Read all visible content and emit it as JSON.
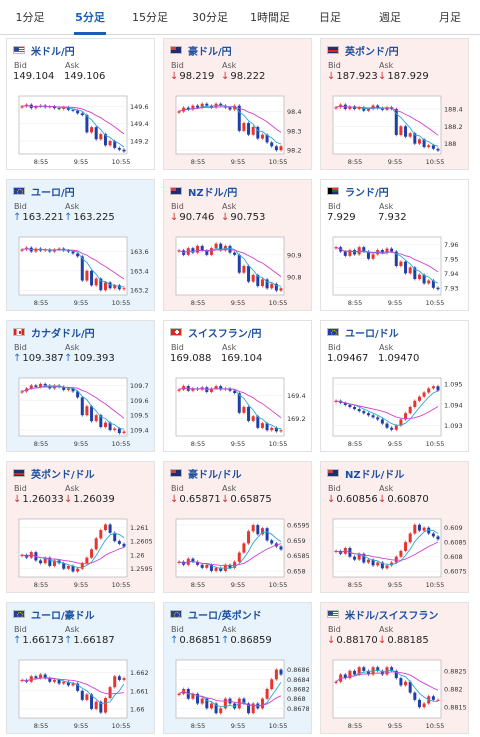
{
  "tabs": [
    {
      "label": "1分足",
      "active": false
    },
    {
      "label": "5分足",
      "active": true
    },
    {
      "label": "15分足",
      "active": false
    },
    {
      "label": "30分足",
      "active": false
    },
    {
      "label": "1時間足",
      "active": false
    },
    {
      "label": "日足",
      "active": false
    },
    {
      "label": "週足",
      "active": false
    },
    {
      "label": "月足",
      "active": false
    }
  ],
  "labels": {
    "bid": "Bid",
    "ask": "Ask"
  },
  "colors": {
    "up_card": "#e9f3fb",
    "down_card": "#fdeeee",
    "flat_card": "#ffffff",
    "candle_up": "#e8342e",
    "candle_down": "#1f3fa8",
    "ma_fast": "#2aa8d8",
    "ma_slow": "#d040d0",
    "title": "#1b4fa0",
    "tab_active": "#1a5fb4"
  },
  "times": [
    "8:55",
    "9:55",
    "10:55"
  ],
  "pairs": [
    {
      "name": "米ドル/円",
      "flag": "us",
      "direction": "flat",
      "bid": "149.104",
      "ask": "149.106",
      "yticks": [
        "149.6",
        "149.4",
        "149.2"
      ],
      "yrange": [
        149.05,
        149.72
      ],
      "close": [
        149.6,
        149.62,
        149.58,
        149.6,
        149.61,
        149.59,
        149.6,
        149.58,
        149.57,
        149.59,
        149.56,
        149.55,
        149.52,
        149.5,
        149.3,
        149.36,
        149.22,
        149.28,
        149.15,
        149.2,
        149.12,
        149.1,
        149.08
      ]
    },
    {
      "name": "豪ドル/円",
      "flag": "au",
      "direction": "down",
      "bid": "98.219",
      "ask": "98.222",
      "yticks": [
        "98.4",
        "98.3",
        "98.2"
      ],
      "yrange": [
        98.18,
        98.48
      ],
      "close": [
        98.4,
        98.42,
        98.41,
        98.43,
        98.42,
        98.44,
        98.43,
        98.42,
        98.44,
        98.43,
        98.42,
        98.41,
        98.43,
        98.3,
        98.34,
        98.28,
        98.32,
        98.26,
        98.28,
        98.24,
        98.22,
        98.2,
        98.22
      ]
    },
    {
      "name": "英ポンド/円",
      "flag": "gb",
      "direction": "down",
      "bid": "187.923",
      "ask": "187.929",
      "yticks": [
        "188.4",
        "188.2",
        "188"
      ],
      "yrange": [
        187.88,
        188.55
      ],
      "close": [
        188.42,
        188.45,
        188.4,
        188.43,
        188.4,
        188.42,
        188.38,
        188.4,
        188.44,
        188.41,
        188.39,
        188.42,
        188.4,
        188.1,
        188.2,
        188.08,
        188.12,
        188.0,
        188.05,
        187.96,
        187.98,
        187.94,
        187.92
      ]
    },
    {
      "name": "ユーロ/円",
      "flag": "eu",
      "direction": "up",
      "bid": "163.221",
      "ask": "163.225",
      "yticks": [
        "163.6",
        "163.4",
        "163.2"
      ],
      "yrange": [
        163.15,
        163.75
      ],
      "close": [
        163.62,
        163.64,
        163.6,
        163.63,
        163.61,
        163.62,
        163.6,
        163.62,
        163.63,
        163.61,
        163.6,
        163.58,
        163.55,
        163.3,
        163.4,
        163.25,
        163.32,
        163.2,
        163.28,
        163.22,
        163.25,
        163.21,
        163.22
      ]
    },
    {
      "name": "NZドル/円",
      "flag": "nz",
      "direction": "down",
      "bid": "90.746",
      "ask": "90.753",
      "yticks": [
        "90.9",
        "90.8"
      ],
      "yrange": [
        90.72,
        90.98
      ],
      "close": [
        90.92,
        90.9,
        90.93,
        90.91,
        90.94,
        90.92,
        90.9,
        90.93,
        90.95,
        90.92,
        90.94,
        90.91,
        90.9,
        90.82,
        90.85,
        90.78,
        90.81,
        90.76,
        90.79,
        90.75,
        90.77,
        90.74,
        90.75
      ]
    },
    {
      "name": "ランド/円",
      "flag": "za",
      "direction": "flat",
      "bid": "7.929",
      "ask": "7.932",
      "yticks": [
        "7.96",
        "7.95",
        "7.94",
        "7.93"
      ],
      "yrange": [
        7.925,
        7.965
      ],
      "close": [
        7.958,
        7.955,
        7.952,
        7.956,
        7.953,
        7.958,
        7.955,
        7.95,
        7.953,
        7.956,
        7.954,
        7.957,
        7.955,
        7.945,
        7.948,
        7.94,
        7.944,
        7.936,
        7.939,
        7.933,
        7.935,
        7.93,
        7.929
      ]
    },
    {
      "name": "カナダドル/円",
      "flag": "ca",
      "direction": "up",
      "bid": "109.387",
      "ask": "109.393",
      "yticks": [
        "109.7",
        "109.6",
        "109.5",
        "109.4"
      ],
      "yrange": [
        109.36,
        109.75
      ],
      "close": [
        109.66,
        109.68,
        109.7,
        109.69,
        109.71,
        109.7,
        109.68,
        109.7,
        109.69,
        109.67,
        109.68,
        109.66,
        109.62,
        109.5,
        109.56,
        109.46,
        109.5,
        109.42,
        109.45,
        109.4,
        109.41,
        109.38,
        109.39
      ]
    },
    {
      "name": "スイスフラン/円",
      "flag": "ch",
      "direction": "flat",
      "bid": "169.088",
      "ask": "169.104",
      "yticks": [
        "169.4",
        "169.2"
      ],
      "yrange": [
        169.05,
        169.55
      ],
      "close": [
        169.45,
        169.48,
        169.44,
        169.46,
        169.45,
        169.47,
        169.43,
        169.46,
        169.48,
        169.45,
        169.46,
        169.44,
        169.42,
        169.25,
        169.3,
        169.18,
        169.22,
        169.12,
        169.16,
        169.1,
        169.12,
        169.09,
        169.1
      ]
    },
    {
      "name": "ユーロ/ドル",
      "flag": "eu",
      "direction": "flat",
      "bid": "1.09467",
      "ask": "1.09470",
      "yticks": [
        "1.095",
        "1.094",
        "1.093"
      ],
      "yrange": [
        1.0925,
        1.0953
      ],
      "close": [
        1.0942,
        1.0941,
        1.094,
        1.0939,
        1.0938,
        1.0937,
        1.0936,
        1.0935,
        1.0934,
        1.0933,
        1.0931,
        1.0929,
        1.0928,
        1.093,
        1.0933,
        1.0936,
        1.0939,
        1.0942,
        1.0944,
        1.0946,
        1.0948,
        1.0949,
        1.0947
      ]
    },
    {
      "name": "英ポンド/ドル",
      "flag": "gb",
      "direction": "down",
      "bid": "1.26033",
      "ask": "1.26039",
      "yticks": [
        "1.261",
        "1.2605",
        "1.26",
        "1.2595"
      ],
      "yrange": [
        1.2592,
        1.2613
      ],
      "close": [
        1.26,
        1.2599,
        1.2601,
        1.2598,
        1.2597,
        1.2599,
        1.2596,
        1.2598,
        1.2597,
        1.2595,
        1.2596,
        1.2594,
        1.2595,
        1.2597,
        1.2599,
        1.2602,
        1.2606,
        1.2609,
        1.2611,
        1.2608,
        1.2605,
        1.2604,
        1.2603
      ]
    },
    {
      "name": "豪ドル/ドル",
      "flag": "au",
      "direction": "down",
      "bid": "0.65871",
      "ask": "0.65875",
      "yticks": [
        "0.6595",
        "0.659",
        "0.6585",
        "0.658"
      ],
      "yrange": [
        0.6578,
        0.6597
      ],
      "close": [
        0.6583,
        0.6582,
        0.6584,
        0.6583,
        0.6582,
        0.6581,
        0.6582,
        0.658,
        0.6581,
        0.658,
        0.6582,
        0.6581,
        0.6583,
        0.6586,
        0.6589,
        0.6593,
        0.6595,
        0.6592,
        0.6594,
        0.659,
        0.6589,
        0.6588,
        0.6587
      ]
    },
    {
      "name": "NZドル/ドル",
      "flag": "nz",
      "direction": "down",
      "bid": "0.60856",
      "ask": "0.60870",
      "yticks": [
        "0.609",
        "0.6085",
        "0.608",
        "0.6075"
      ],
      "yrange": [
        0.6073,
        0.6093
      ],
      "close": [
        0.6082,
        0.6081,
        0.6083,
        0.608,
        0.6079,
        0.6081,
        0.6078,
        0.6079,
        0.6077,
        0.6078,
        0.6076,
        0.6077,
        0.6078,
        0.608,
        0.6082,
        0.6085,
        0.6088,
        0.6091,
        0.6089,
        0.609,
        0.6088,
        0.6087,
        0.6086
      ]
    },
    {
      "name": "ユーロ/豪ドル",
      "flag": "eu",
      "direction": "up",
      "bid": "1.66173",
      "ask": "1.66187",
      "yticks": [
        "1.662",
        "1.661",
        "1.66"
      ],
      "yrange": [
        1.6595,
        1.6627
      ],
      "close": [
        1.6616,
        1.6615,
        1.6618,
        1.6617,
        1.6619,
        1.6617,
        1.6615,
        1.6616,
        1.6614,
        1.6615,
        1.6613,
        1.6614,
        1.661,
        1.6605,
        1.6608,
        1.66,
        1.6604,
        1.6598,
        1.6606,
        1.6612,
        1.6618,
        1.6616,
        1.6617
      ]
    },
    {
      "name": "ユーロ/英ポンド",
      "flag": "eu",
      "direction": "up",
      "bid": "0.86851",
      "ask": "0.86859",
      "yticks": [
        "0.8686",
        "0.8684",
        "0.8682",
        "0.868",
        "0.8678"
      ],
      "yrange": [
        0.8676,
        0.8688
      ],
      "close": [
        0.8681,
        0.8682,
        0.868,
        0.8681,
        0.8679,
        0.868,
        0.8678,
        0.8679,
        0.8677,
        0.8678,
        0.868,
        0.8679,
        0.8678,
        0.868,
        0.8679,
        0.8677,
        0.8679,
        0.8678,
        0.868,
        0.8682,
        0.8684,
        0.8686,
        0.8685
      ]
    },
    {
      "name": "米ドル/スイスフラン",
      "flag": "us",
      "direction": "down",
      "bid": "0.88170",
      "ask": "0.88185",
      "yticks": [
        "0.8825",
        "0.882",
        "0.8815"
      ],
      "yrange": [
        0.8812,
        0.8828
      ],
      "close": [
        0.8822,
        0.8824,
        0.8823,
        0.8825,
        0.8824,
        0.8826,
        0.8825,
        0.8824,
        0.8826,
        0.8825,
        0.8824,
        0.8826,
        0.8825,
        0.8823,
        0.8821,
        0.8822,
        0.8819,
        0.8817,
        0.8815,
        0.8816,
        0.8818,
        0.8817,
        0.8817
      ]
    }
  ]
}
